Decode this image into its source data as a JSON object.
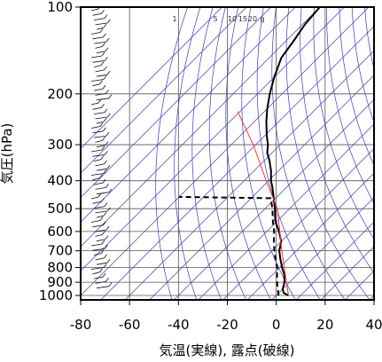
{
  "chart_data": {
    "type": "line",
    "xlabel": "気温(実線), 露点(破線)",
    "ylabel": "気圧(hPa)",
    "x_ticks": [
      -80,
      -60,
      -40,
      -20,
      0,
      20,
      40
    ],
    "y_ticks": [
      100,
      200,
      300,
      400,
      500,
      600,
      700,
      800,
      900,
      1000
    ],
    "xlim": [
      -80,
      40
    ],
    "ylim": [
      1050,
      100
    ],
    "y_scale": "log",
    "grid": true,
    "mixing_ratio_labels": [
      "1",
      "5",
      "10",
      "15",
      "20",
      "g"
    ],
    "series": [
      {
        "kind": "temperature",
        "style": "solid",
        "color": "#000000",
        "points": [
          {
            "p": 1000,
            "t": 5
          },
          {
            "p": 980,
            "t": 2
          },
          {
            "p": 950,
            "t": 0
          },
          {
            "p": 900,
            "t": -2
          },
          {
            "p": 850,
            "t": -5
          },
          {
            "p": 800,
            "t": -9
          },
          {
            "p": 750,
            "t": -13
          },
          {
            "p": 700,
            "t": -17
          },
          {
            "p": 650,
            "t": -20
          },
          {
            "p": 600,
            "t": -25
          },
          {
            "p": 550,
            "t": -31
          },
          {
            "p": 500,
            "t": -36
          },
          {
            "p": 450,
            "t": -42
          },
          {
            "p": 420,
            "t": -46
          },
          {
            "p": 400,
            "t": -49
          },
          {
            "p": 370,
            "t": -53
          },
          {
            "p": 340,
            "t": -58
          },
          {
            "p": 320,
            "t": -62
          },
          {
            "p": 300,
            "t": -65
          },
          {
            "p": 280,
            "t": -69
          },
          {
            "p": 250,
            "t": -75
          },
          {
            "p": 225,
            "t": -80
          },
          {
            "p": 200,
            "t": -85
          },
          {
            "p": 175,
            "t": -90
          },
          {
            "p": 150,
            "t": -95
          },
          {
            "p": 130,
            "t": -97
          },
          {
            "p": 115,
            "t": -99
          },
          {
            "p": 100,
            "t": -100
          }
        ]
      },
      {
        "kind": "dewpoint",
        "style": "dashed",
        "color": "#000000",
        "points": [
          {
            "p": 1000,
            "t": 1
          },
          {
            "p": 950,
            "t": -2
          },
          {
            "p": 900,
            "t": -5
          },
          {
            "p": 850,
            "t": -8
          },
          {
            "p": 800,
            "t": -11
          },
          {
            "p": 750,
            "t": -15
          },
          {
            "p": 700,
            "t": -19
          },
          {
            "p": 650,
            "t": -23
          },
          {
            "p": 600,
            "t": -27
          },
          {
            "p": 550,
            "t": -32
          },
          {
            "p": 500,
            "t": -37
          },
          {
            "p": 460,
            "t": -42
          },
          {
            "p": 455,
            "t": -80
          }
        ]
      },
      {
        "kind": "reference",
        "style": "solid",
        "color": "#ff3b2f",
        "points": [
          {
            "p": 1000,
            "t": 5
          },
          {
            "p": 700,
            "t": -16
          },
          {
            "p": 500,
            "t": -35
          },
          {
            "p": 400,
            "t": -51
          },
          {
            "p": 300,
            "t": -71
          },
          {
            "p": 230,
            "t": -91
          }
        ]
      }
    ]
  }
}
